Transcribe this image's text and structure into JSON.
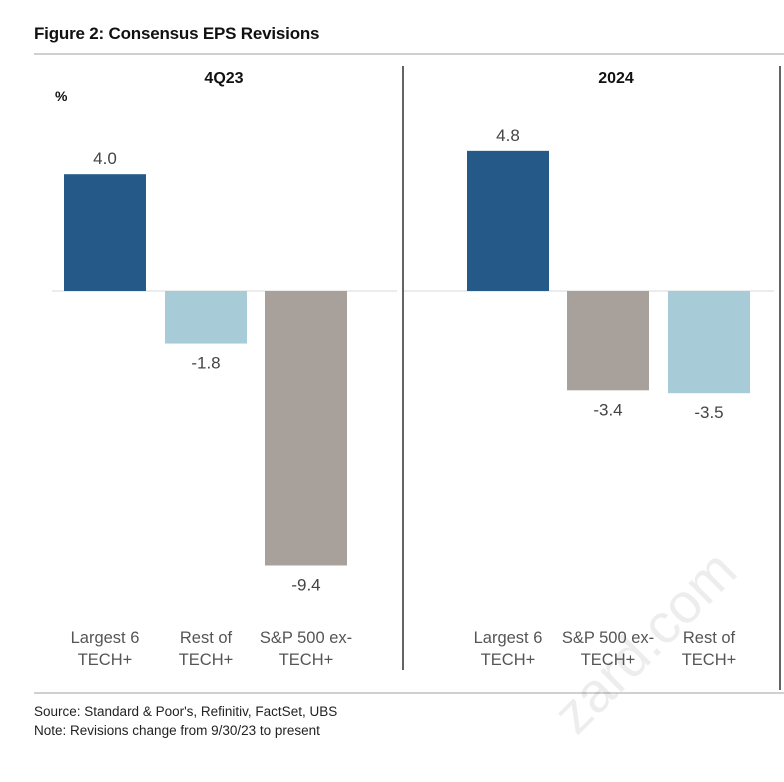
{
  "title": "Figure 2: Consensus EPS Revisions",
  "source": "Source: Standard & Poor's, Refinitiv, FactSet, UBS",
  "note": "Note: Revisions change from 9/30/23 to present",
  "watermark": "zard.com",
  "colors": {
    "largest6": "#255a88",
    "rest": "#a7ccd8",
    "sp500ex": "#a8a19b",
    "zero_line": "#d9d9d9",
    "divider": "#111111",
    "value_label": "#444444",
    "category_label": "#555555"
  },
  "chart_data": {
    "type": "bar",
    "unit_label": "%",
    "ylabel": "%",
    "ylim": [
      -9.4,
      4.8
    ],
    "grid": false,
    "legend": "none",
    "panels": [
      {
        "title": "4Q23",
        "categories": [
          "Largest 6 TECH+",
          "Rest of TECH+",
          "S&P 500 ex-TECH+"
        ],
        "category_lines": [
          [
            "Largest 6",
            "TECH+"
          ],
          [
            "Rest of",
            "TECH+"
          ],
          [
            "S&P 500 ex-",
            "TECH+"
          ]
        ],
        "values": [
          4.0,
          -1.8,
          -9.4
        ],
        "value_labels": [
          "4.0",
          "-1.8",
          "-9.4"
        ],
        "color_keys": [
          "largest6",
          "rest",
          "sp500ex"
        ]
      },
      {
        "title": "2024",
        "categories": [
          "Largest 6 TECH+",
          "S&P 500 ex-TECH+",
          "Rest of TECH+"
        ],
        "category_lines": [
          [
            "Largest 6",
            "TECH+"
          ],
          [
            "S&P 500 ex-",
            "TECH+"
          ],
          [
            "Rest of",
            "TECH+"
          ]
        ],
        "values": [
          4.8,
          -3.4,
          -3.5
        ],
        "value_labels": [
          "4.8",
          "-3.4",
          "-3.5"
        ],
        "color_keys": [
          "largest6",
          "sp500ex",
          "rest"
        ]
      }
    ]
  }
}
